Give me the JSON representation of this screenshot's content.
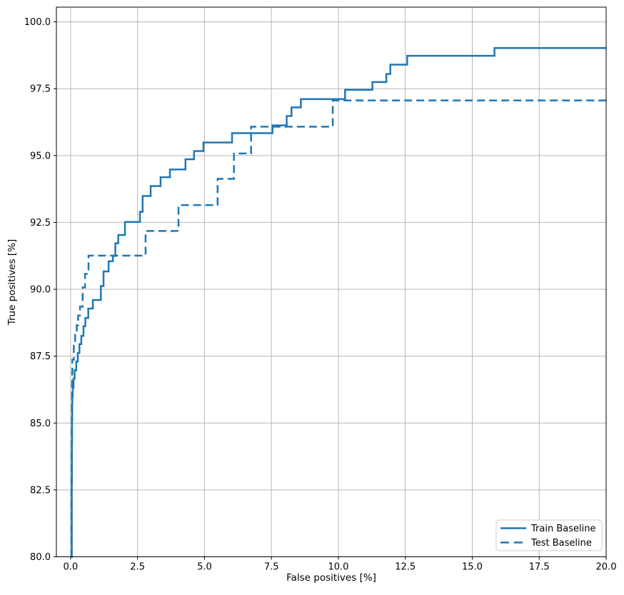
{
  "figure": {
    "background": "#ffffff",
    "line_blue": "#1f77b4",
    "grid_color": "#b6b6b6",
    "spine_color": "#000000",
    "legend_border_color": "#cccccc"
  },
  "chart_data": {
    "type": "line",
    "subtype": "step-post",
    "title": "",
    "xlabel": "False positives [%]",
    "ylabel": "True positives [%]",
    "xlim": [
      -0.53,
      20
    ],
    "ylim": [
      80,
      100.55
    ],
    "grid": true,
    "xticks": {
      "values": [
        0.0,
        2.5,
        5.0,
        7.5,
        10.0,
        12.5,
        15.0,
        17.5,
        20.0
      ],
      "labels": [
        "0.0",
        "2.5",
        "5.0",
        "7.5",
        "10.0",
        "12.5",
        "15.0",
        "17.5",
        "20.0"
      ]
    },
    "yticks": {
      "values": [
        80.0,
        82.5,
        85.0,
        87.5,
        90.0,
        92.5,
        95.0,
        97.5,
        100.0
      ],
      "labels": [
        "80.0",
        "82.5",
        "85.0",
        "87.5",
        "90.0",
        "92.5",
        "95.0",
        "97.5",
        "100.0"
      ]
    },
    "legend": {
      "position": "lower right",
      "entries": [
        {
          "label": "Train Baseline",
          "line_style": "solid"
        },
        {
          "label": "Test Baseline",
          "line_style": "dashed"
        }
      ]
    },
    "series": [
      {
        "name": "Train Baseline",
        "line_style": "solid",
        "color": "#1f77b4",
        "line_width": 2.5,
        "points": [
          [
            0.04,
            80.0
          ],
          [
            0.045,
            82.8
          ],
          [
            0.05,
            84.2
          ],
          [
            0.055,
            85.1
          ],
          [
            0.06,
            85.7
          ],
          [
            0.065,
            86.0
          ],
          [
            0.08,
            86.32
          ],
          [
            0.11,
            86.66
          ],
          [
            0.15,
            86.97
          ],
          [
            0.21,
            87.3
          ],
          [
            0.27,
            87.62
          ],
          [
            0.33,
            87.95
          ],
          [
            0.4,
            88.26
          ],
          [
            0.48,
            88.62
          ],
          [
            0.55,
            88.93
          ],
          [
            0.66,
            89.28
          ],
          [
            0.83,
            89.6
          ],
          [
            1.13,
            90.12
          ],
          [
            1.23,
            90.67
          ],
          [
            1.42,
            91.05
          ],
          [
            1.58,
            91.25
          ],
          [
            1.67,
            91.72
          ],
          [
            1.78,
            92.03
          ],
          [
            2.03,
            92.52
          ],
          [
            2.59,
            92.9
          ],
          [
            2.69,
            93.49
          ],
          [
            2.99,
            93.86
          ],
          [
            3.36,
            94.19
          ],
          [
            3.71,
            94.48
          ],
          [
            4.29,
            94.86
          ],
          [
            4.61,
            95.17
          ],
          [
            4.96,
            95.49
          ],
          [
            6.03,
            95.84
          ],
          [
            7.54,
            96.13
          ],
          [
            8.07,
            96.48
          ],
          [
            8.25,
            96.8
          ],
          [
            8.6,
            97.11
          ],
          [
            10.25,
            97.46
          ],
          [
            11.27,
            97.75
          ],
          [
            11.79,
            98.05
          ],
          [
            11.94,
            98.4
          ],
          [
            12.57,
            98.73
          ],
          [
            15.83,
            99.02
          ],
          [
            20.0,
            99.02
          ]
        ]
      },
      {
        "name": "Test Baseline",
        "line_style": "dashed",
        "color": "#1f77b4",
        "line_width": 2.5,
        "points": [
          [
            0.03,
            80.0
          ],
          [
            0.035,
            82.5
          ],
          [
            0.04,
            84.0
          ],
          [
            0.045,
            85.0
          ],
          [
            0.05,
            85.8
          ],
          [
            0.055,
            86.4
          ],
          [
            0.06,
            86.9
          ],
          [
            0.065,
            87.37
          ],
          [
            0.12,
            88.0
          ],
          [
            0.17,
            88.35
          ],
          [
            0.23,
            88.66
          ],
          [
            0.28,
            89.02
          ],
          [
            0.35,
            89.35
          ],
          [
            0.45,
            90.07
          ],
          [
            0.54,
            90.58
          ],
          [
            0.67,
            91.26
          ],
          [
            2.8,
            92.18
          ],
          [
            4.03,
            93.15
          ],
          [
            5.49,
            94.13
          ],
          [
            6.1,
            95.08
          ],
          [
            6.74,
            96.08
          ],
          [
            9.79,
            97.06
          ],
          [
            20.0,
            97.06
          ]
        ]
      }
    ]
  }
}
